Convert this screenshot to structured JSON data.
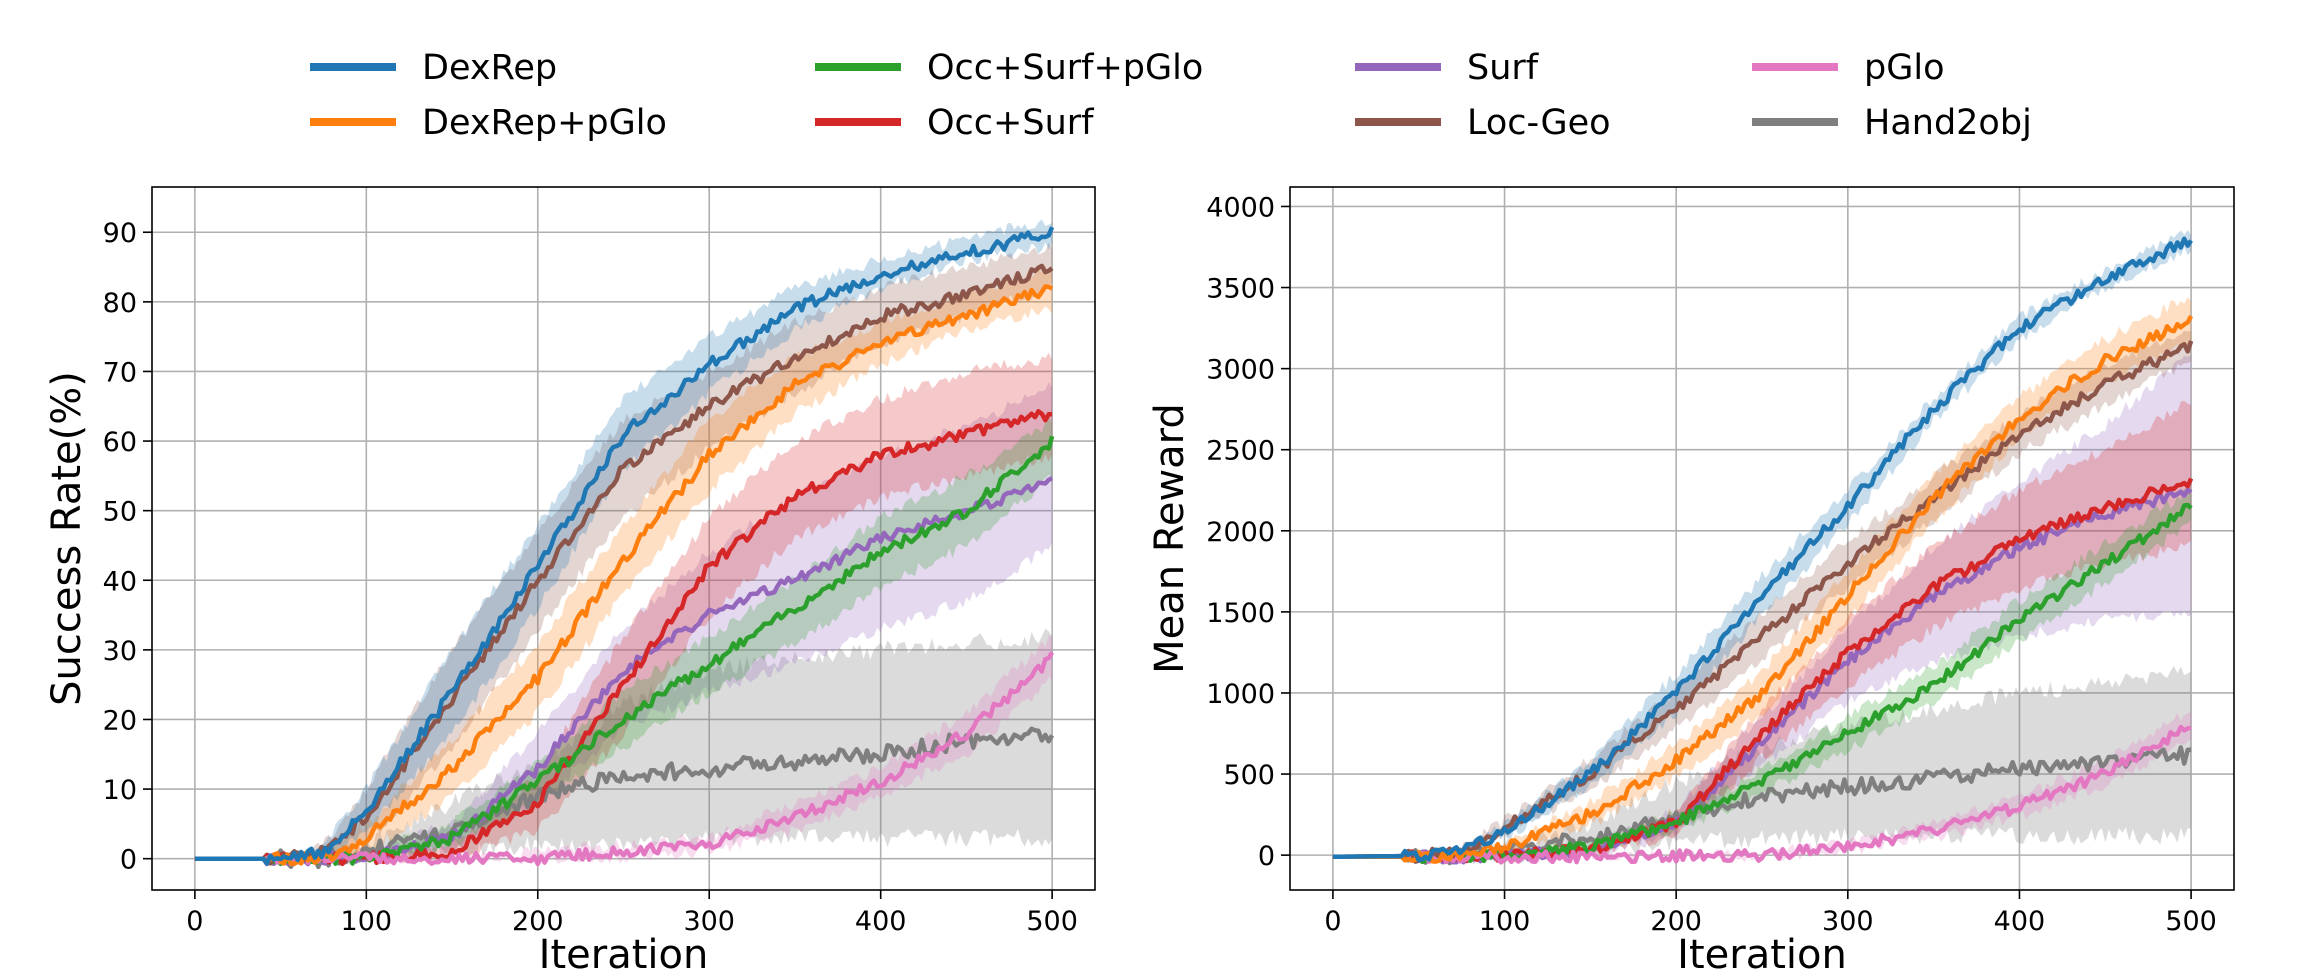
{
  "legend": [
    {
      "name": "DexRep",
      "color": "#1f77b4"
    },
    {
      "name": "DexRep+pGlo",
      "color": "#ff7f0e"
    },
    {
      "name": "Occ+Surf+pGlo",
      "color": "#2ca02c"
    },
    {
      "name": "Occ+Surf",
      "color": "#d62728"
    },
    {
      "name": "Surf",
      "color": "#9467bd"
    },
    {
      "name": "Loc-Geo",
      "color": "#8c564b"
    },
    {
      "name": "pGlo",
      "color": "#e377c2"
    },
    {
      "name": "Hand2obj",
      "color": "#7f7f7f"
    }
  ],
  "chart_data": [
    {
      "type": "line",
      "title": "",
      "xlabel": "Iteration",
      "ylabel": "Success Rate(%)",
      "xlim": [
        -25,
        525
      ],
      "ylim": [
        -4.5,
        96.5
      ],
      "xticks": [
        0,
        100,
        200,
        300,
        400,
        500
      ],
      "yticks": [
        0,
        10,
        20,
        30,
        40,
        50,
        60,
        70,
        80,
        90
      ],
      "grid": true,
      "x": [
        0,
        50,
        75,
        100,
        150,
        200,
        250,
        300,
        350,
        400,
        450,
        500
      ],
      "series": [
        {
          "name": "DexRep",
          "color": "#1f77b4",
          "values": [
            0,
            0,
            1,
            7,
            24,
            42,
            61,
            71,
            79,
            84,
            87,
            90
          ],
          "lower": [
            0,
            0,
            0,
            4,
            18,
            36,
            56,
            67,
            76,
            82,
            86,
            88
          ],
          "upper": [
            0,
            0,
            2,
            10,
            30,
            48,
            66,
            75,
            82,
            86,
            89,
            92
          ]
        },
        {
          "name": "DexRep+pGlo",
          "color": "#ff7f0e",
          "values": [
            0,
            0,
            0,
            3,
            13,
            26,
            43,
            58,
            68,
            74,
            78,
            82
          ],
          "lower": [
            0,
            0,
            0,
            1,
            9,
            21,
            38,
            53,
            64,
            71,
            76,
            79
          ],
          "upper": [
            0,
            0,
            1,
            5,
            17,
            31,
            48,
            63,
            72,
            77,
            81,
            85
          ]
        },
        {
          "name": "Occ+Surf+pGlo",
          "color": "#2ca02c",
          "values": [
            0,
            0,
            0,
            0,
            3,
            11,
            20,
            28,
            36,
            44,
            50,
            60
          ],
          "lower": [
            0,
            0,
            0,
            0,
            2,
            8,
            16,
            24,
            31,
            39,
            45,
            55
          ],
          "upper": [
            0,
            0,
            0,
            1,
            5,
            14,
            24,
            32,
            40,
            49,
            55,
            63
          ]
        },
        {
          "name": "Occ+Surf",
          "color": "#d62728",
          "values": [
            0,
            0,
            0,
            0,
            1,
            8,
            25,
            42,
            52,
            58,
            61,
            64
          ],
          "lower": [
            0,
            0,
            0,
            0,
            0,
            4,
            18,
            35,
            46,
            52,
            55,
            58
          ],
          "upper": [
            0,
            0,
            0,
            1,
            2,
            12,
            32,
            49,
            60,
            66,
            70,
            72
          ]
        },
        {
          "name": "Surf",
          "color": "#9467bd",
          "values": [
            0,
            0,
            0,
            0,
            3,
            13,
            27,
            35,
            40,
            46,
            50,
            54
          ],
          "lower": [
            0,
            0,
            0,
            0,
            1,
            8,
            19,
            24,
            28,
            33,
            37,
            45
          ],
          "upper": [
            0,
            0,
            0,
            1,
            5,
            18,
            33,
            44,
            52,
            58,
            62,
            68
          ]
        },
        {
          "name": "Loc-Geo",
          "color": "#8c564b",
          "values": [
            0,
            0,
            1,
            6,
            23,
            40,
            56,
            65,
            72,
            78,
            81,
            85
          ],
          "lower": [
            0,
            0,
            0,
            2,
            16,
            33,
            49,
            59,
            67,
            74,
            78,
            82
          ],
          "upper": [
            0,
            0,
            2,
            10,
            30,
            47,
            63,
            70,
            77,
            82,
            85,
            88
          ]
        },
        {
          "name": "pGlo",
          "color": "#e377c2",
          "values": [
            0,
            0,
            0,
            0,
            0,
            0,
            1,
            2,
            6,
            11,
            18,
            29
          ],
          "lower": [
            0,
            0,
            0,
            0,
            0,
            0,
            0,
            1,
            4,
            9,
            15,
            26
          ],
          "upper": [
            0,
            0,
            0,
            0,
            0,
            1,
            2,
            3,
            8,
            13,
            21,
            32
          ]
        },
        {
          "name": "Hand2obj",
          "color": "#7f7f7f",
          "values": [
            0,
            0,
            0,
            1,
            4,
            9,
            12,
            13,
            14,
            15,
            17,
            18
          ],
          "lower": [
            0,
            0,
            0,
            0,
            1,
            2,
            2,
            3,
            3,
            3,
            3,
            3
          ],
          "upper": [
            0,
            0,
            0,
            2,
            8,
            14,
            22,
            27,
            29,
            30,
            31,
            32
          ]
        }
      ]
    },
    {
      "type": "line",
      "title": "",
      "xlabel": "Iteration",
      "ylabel": "Mean Reward",
      "xlim": [
        -25,
        525
      ],
      "ylim": [
        -215,
        4120
      ],
      "xticks": [
        0,
        100,
        200,
        300,
        400,
        500
      ],
      "yticks": [
        0,
        500,
        1000,
        1500,
        2000,
        2500,
        3000,
        3500,
        4000
      ],
      "grid": true,
      "x": [
        0,
        50,
        75,
        100,
        150,
        200,
        250,
        300,
        350,
        400,
        450,
        500
      ],
      "series": [
        {
          "name": "DexRep",
          "color": "#1f77b4",
          "values": [
            -10,
            -5,
            20,
            150,
            500,
            1000,
            1600,
            2150,
            2750,
            3250,
            3550,
            3800
          ],
          "lower": [
            -10,
            -10,
            10,
            110,
            420,
            880,
            1480,
            2050,
            2680,
            3180,
            3500,
            3740
          ],
          "upper": [
            -10,
            0,
            30,
            190,
            580,
            1120,
            1720,
            2250,
            2820,
            3320,
            3600,
            3860
          ]
        },
        {
          "name": "DexRep+pGlo",
          "color": "#ff7f0e",
          "values": [
            -10,
            -10,
            0,
            50,
            250,
            580,
            1000,
            1600,
            2200,
            2700,
            3050,
            3300
          ],
          "lower": [
            -10,
            -10,
            -5,
            30,
            180,
            480,
            870,
            1450,
            2060,
            2580,
            2920,
            3150
          ],
          "upper": [
            -10,
            -5,
            5,
            70,
            320,
            680,
            1130,
            1750,
            2340,
            2820,
            3180,
            3450
          ]
        },
        {
          "name": "Occ+Surf+pGlo",
          "color": "#2ca02c",
          "values": [
            -10,
            -10,
            -10,
            0,
            50,
            200,
            450,
            750,
            1050,
            1450,
            1800,
            2150
          ],
          "lower": [
            -10,
            -10,
            -10,
            -5,
            30,
            150,
            380,
            650,
            940,
            1330,
            1680,
            2050
          ],
          "upper": [
            -10,
            -10,
            -5,
            5,
            70,
            250,
            520,
            850,
            1160,
            1570,
            1920,
            2250
          ]
        },
        {
          "name": "Occ+Surf",
          "color": "#d62728",
          "values": [
            -10,
            -10,
            -10,
            0,
            30,
            200,
            750,
            1250,
            1650,
            1950,
            2150,
            2300
          ],
          "lower": [
            -10,
            -10,
            -10,
            -5,
            10,
            130,
            600,
            1050,
            1400,
            1650,
            1800,
            1900
          ],
          "upper": [
            -10,
            -10,
            -5,
            5,
            50,
            270,
            900,
            1450,
            1900,
            2250,
            2500,
            2800
          ]
        },
        {
          "name": "Surf",
          "color": "#9467bd",
          "values": [
            -10,
            -10,
            -10,
            0,
            30,
            200,
            700,
            1200,
            1600,
            1900,
            2100,
            2250
          ],
          "lower": [
            -10,
            -10,
            -10,
            -5,
            10,
            120,
            550,
            950,
            1200,
            1350,
            1450,
            1500
          ],
          "upper": [
            -10,
            -10,
            -5,
            5,
            60,
            280,
            850,
            1400,
            1900,
            2300,
            2650,
            3100
          ]
        },
        {
          "name": "Loc-Geo",
          "color": "#8c564b",
          "values": [
            -10,
            -5,
            30,
            170,
            500,
            900,
            1350,
            1800,
            2200,
            2600,
            2900,
            3150
          ],
          "lower": [
            -10,
            -10,
            15,
            130,
            410,
            780,
            1210,
            1660,
            2070,
            2480,
            2780,
            3050
          ],
          "upper": [
            -10,
            0,
            45,
            210,
            590,
            1020,
            1490,
            1940,
            2330,
            2720,
            3020,
            3250
          ]
        },
        {
          "name": "pGlo",
          "color": "#e377c2",
          "values": [
            -10,
            -10,
            -10,
            -10,
            -10,
            -5,
            0,
            50,
            150,
            300,
            500,
            800
          ],
          "lower": [
            -10,
            -10,
            -10,
            -10,
            -10,
            -10,
            -10,
            30,
            110,
            240,
            420,
            700
          ],
          "upper": [
            -10,
            -10,
            -10,
            -10,
            -5,
            0,
            10,
            70,
            190,
            360,
            580,
            900
          ]
        },
        {
          "name": "Hand2obj",
          "color": "#7f7f7f",
          "values": [
            -10,
            -10,
            -5,
            20,
            100,
            250,
            350,
            420,
            480,
            530,
            570,
            620
          ],
          "lower": [
            -10,
            -10,
            -10,
            0,
            30,
            80,
            100,
            110,
            115,
            115,
            115,
            115
          ],
          "upper": [
            -10,
            -5,
            0,
            50,
            200,
            450,
            650,
            800,
            900,
            1000,
            1050,
            1150
          ]
        }
      ]
    }
  ]
}
